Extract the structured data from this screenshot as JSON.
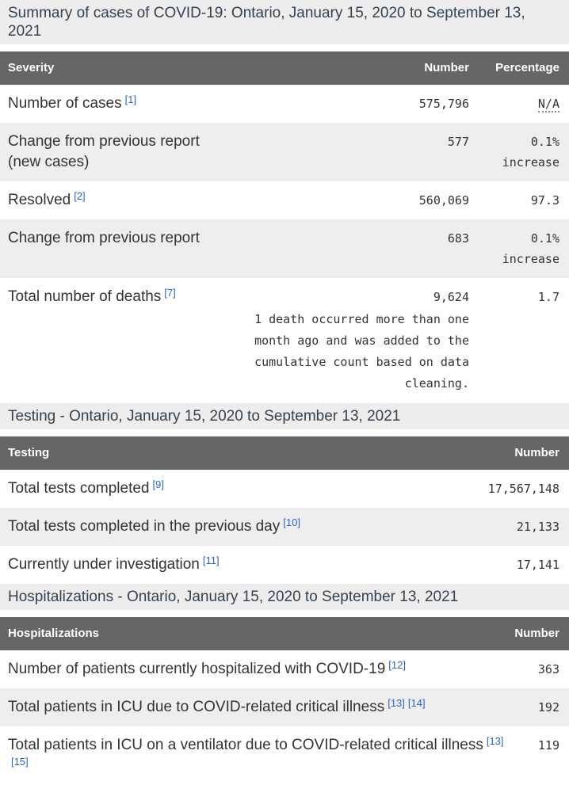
{
  "colors": {
    "header_bg": "#666666",
    "header_text": "#ffffff",
    "caption_bg": "#ededed",
    "caption_text": "#35424f",
    "stripe_bg": "#eeeeee",
    "text": "#333333",
    "link": "#2864c8"
  },
  "report": {
    "tables": [
      {
        "caption": "Summary of cases of COVID-19: Ontario, January 15, 2020 to September 13, 2021",
        "columns": [
          "Severity",
          "Number",
          "Percentage"
        ],
        "rows": [
          {
            "label": "Number of cases",
            "footnotes": [
              "[1]"
            ],
            "number": "575,796",
            "percentage": "N/A",
            "abbr": true
          },
          {
            "label": "Change from previous report (new cases)",
            "footnotes": [],
            "number": "577",
            "percentage": "0.1% increase"
          },
          {
            "label": "Resolved",
            "footnotes": [
              "[2]"
            ],
            "number": "560,069",
            "percentage": "97.3"
          },
          {
            "label": "Change from previous report",
            "footnotes": [],
            "number": "683",
            "percentage": "0.1% increase"
          },
          {
            "label": "Total number of deaths",
            "footnotes": [
              "[7]"
            ],
            "number": "9,624",
            "number_note": "1 death occurred more than one month ago and was added to the cumulative count based on data cleaning.",
            "percentage": "1.7"
          }
        ]
      },
      {
        "caption": "Testing - Ontario, January 15, 2020 to September 13, 2021",
        "columns": [
          "Testing",
          "Number"
        ],
        "rows": [
          {
            "label": "Total tests completed",
            "footnotes": [
              "[9]"
            ],
            "number": "17,567,148"
          },
          {
            "label": "Total tests completed in the previous day",
            "footnotes": [
              "[10]"
            ],
            "number": "21,133"
          },
          {
            "label": "Currently under investigation",
            "footnotes": [
              "[11]"
            ],
            "number": "17,141"
          }
        ]
      },
      {
        "caption": "Hospitalizations - Ontario, January 15, 2020 to September 13, 2021",
        "columns": [
          "Hospitalizations",
          "Number"
        ],
        "rows": [
          {
            "label": "Number of patients currently hospitalized with COVID-19",
            "footnotes": [
              "[12]"
            ],
            "number": "363"
          },
          {
            "label": "Total patients in ICU due to COVID-related critical illness",
            "footnotes": [
              "[13]",
              "[14]"
            ],
            "number": "192"
          },
          {
            "label": "Total patients in ICU on a ventilator due to COVID-related critical illness",
            "footnotes": [
              "[13]",
              "[15]"
            ],
            "number": "119"
          }
        ]
      }
    ]
  }
}
